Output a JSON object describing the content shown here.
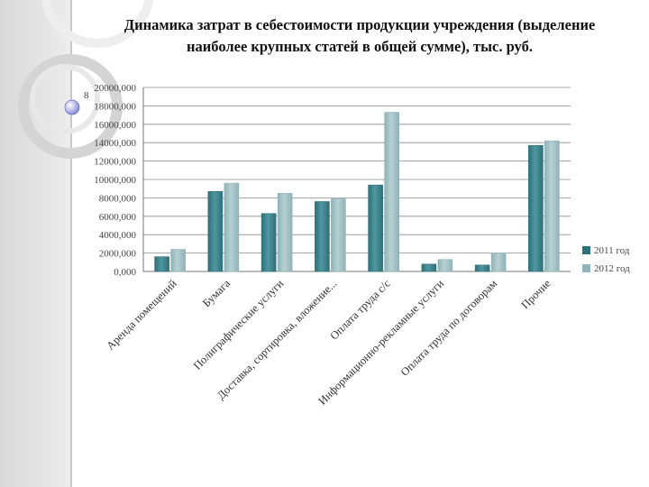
{
  "title_lines": [
    "Динамика затрат в себестоимости продукции учреждения (выделение",
    "наиболее крупных статей в общей сумме), тыс. руб."
  ],
  "colors": {
    "series_2011": "#2f6f78",
    "series_2012": "#8fb3b8",
    "grid": "#8c8c8c",
    "axis": "#777777"
  },
  "chart_data": {
    "type": "bar",
    "title": "Динамика затрат в себестоимости продукции учреждения (выделение наиболее крупных статей в общей сумме), тыс. руб.",
    "categories": [
      "Аренда помещений",
      "Бумага",
      "Полиграфические услуги",
      "Доставка, сортировка, вложение...",
      "Оплата труда с/с",
      "Информационно-рекламные услуги",
      "Оплата труда по договорам",
      "Прочие"
    ],
    "series": [
      {
        "name": "2011 год",
        "values": [
          1600,
          8700,
          6300,
          7600,
          9400,
          800,
          700,
          13700
        ]
      },
      {
        "name": "2012 год",
        "values": [
          2400,
          9600,
          8500,
          7900,
          17300,
          1300,
          2000,
          14200
        ]
      }
    ],
    "yticks": [
      "0,000",
      "2000,000",
      "4000,000",
      "6000,000",
      "8000,000",
      "10000,000",
      "12000,000",
      "14000,000",
      "16000,000",
      "18000,000",
      "20000,000"
    ],
    "y_stray_mark": "8",
    "ylim": [
      0,
      20000
    ],
    "ystep": 2000,
    "grid": true,
    "legend_position": "right"
  }
}
